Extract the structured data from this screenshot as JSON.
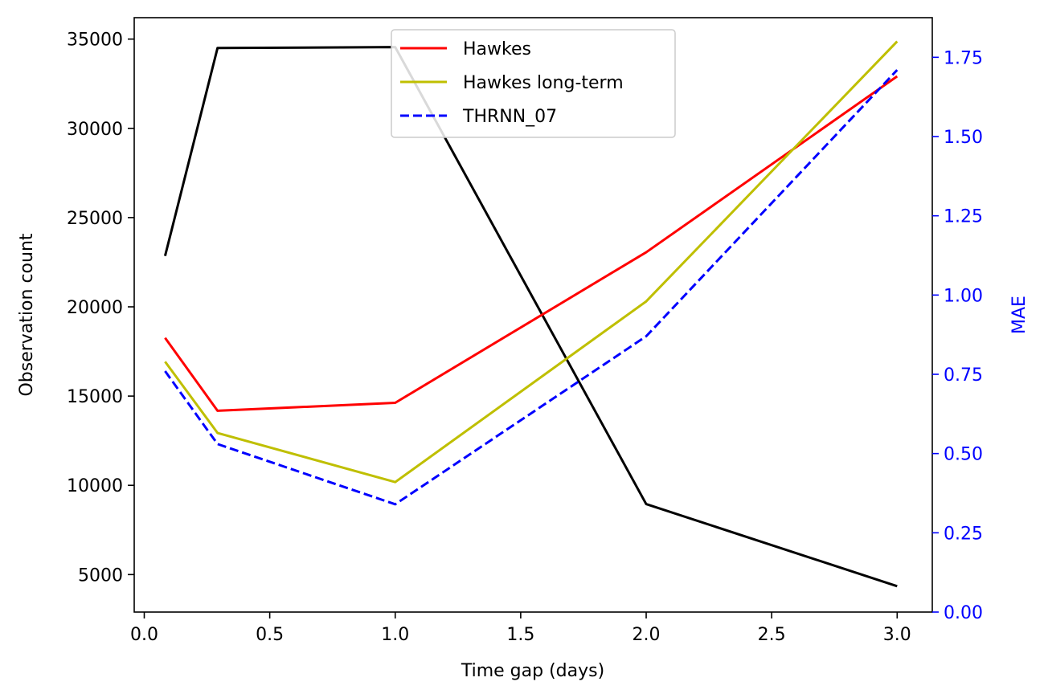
{
  "chart_data": {
    "type": "line",
    "xlabel": "Time gap (days)",
    "ylabel_left": "Observation count",
    "ylabel_right": "MAE",
    "xlim": [
      -0.04,
      3.14
    ],
    "ylim_left": [
      2900,
      36200
    ],
    "ylim_right": [
      0,
      1.875
    ],
    "x_ticks": [
      0.0,
      0.5,
      1.0,
      1.5,
      2.0,
      2.5,
      3.0
    ],
    "x_tick_labels": [
      "0.0",
      "0.5",
      "1.0",
      "1.5",
      "2.0",
      "2.5",
      "3.0"
    ],
    "y_left_ticks": [
      5000,
      10000,
      15000,
      20000,
      25000,
      30000,
      35000
    ],
    "y_left_tick_labels": [
      "5000",
      "10000",
      "15000",
      "20000",
      "25000",
      "30000",
      "35000"
    ],
    "y_right_ticks": [
      0.0,
      0.25,
      0.5,
      0.75,
      1.0,
      1.25,
      1.5,
      1.75
    ],
    "y_right_tick_labels": [
      "0.00",
      "0.25",
      "0.50",
      "0.75",
      "1.00",
      "1.25",
      "1.50",
      "1.75"
    ],
    "right_axis_color": "#0000ff",
    "count_series": {
      "axis": "left",
      "color": "#000000",
      "x": [
        0.083,
        0.292,
        1.0,
        2.0,
        3.0
      ],
      "values": [
        22850,
        34500,
        34550,
        8950,
        4350
      ]
    },
    "series": [
      {
        "name": "Hawkes",
        "axis": "right",
        "color": "#ff0000",
        "style": "solid",
        "x": [
          0.083,
          0.292,
          1.0,
          2.0,
          3.0
        ],
        "values": [
          0.865,
          0.635,
          0.66,
          1.135,
          1.69
        ]
      },
      {
        "name": "Hawkes long-term",
        "axis": "right",
        "color": "#bfbf00",
        "style": "solid",
        "x": [
          0.083,
          0.292,
          1.0,
          2.0,
          3.0
        ],
        "values": [
          0.79,
          0.565,
          0.41,
          0.98,
          1.8
        ]
      },
      {
        "name": "THRNN_07",
        "axis": "right",
        "color": "#0000ff",
        "style": "dashed",
        "x": [
          0.083,
          0.292,
          1.0,
          2.0,
          3.0
        ],
        "values": [
          0.76,
          0.53,
          0.34,
          0.87,
          1.71
        ]
      }
    ],
    "legend_position": "top-center"
  }
}
